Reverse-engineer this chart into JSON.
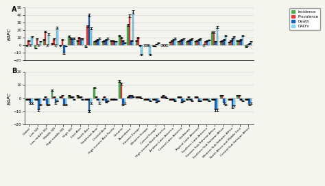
{
  "categories": [
    "Global",
    "Low SDI",
    "Low-middle SDI",
    "Middle SDI",
    "High-middle SDI",
    "High SDI",
    "East Asia",
    "South Asia",
    "Southeast Asia",
    "Central Asia",
    "High-income Asia Pacific",
    "Oceania",
    "Australasia",
    "Eastern Europe",
    "Western Europe",
    "Central Europe",
    "High-income North America",
    "Andean Latin America",
    "Central Latin America",
    "Caribbean",
    "Tropical Latin America",
    "Southern Latin America",
    "Eastern Sub-Saharan Africa",
    "Southern Sub-Saharan Africa",
    "Western Sub-Saharan Africa",
    "North Africa and Middle East",
    "Central Sub-Saharan Africa"
  ],
  "panel_A": {
    "incidence": [
      -1,
      -4,
      7,
      2,
      -1,
      12,
      6,
      -2,
      5,
      5,
      6,
      13,
      27,
      6,
      0,
      -1,
      0,
      4,
      5,
      5,
      5,
      0,
      17,
      5,
      4,
      6,
      -2
    ],
    "prevalence": [
      6,
      8,
      18,
      8,
      7,
      9,
      10,
      25,
      6,
      6,
      6,
      10,
      39,
      10,
      0,
      -1,
      0,
      6,
      6,
      6,
      6,
      5,
      17,
      6,
      6,
      6,
      0
    ],
    "death": [
      0,
      0,
      0,
      0,
      -11,
      9,
      8,
      40,
      7,
      7,
      5,
      6,
      6,
      -1,
      0,
      1,
      0,
      7,
      7,
      7,
      7,
      6,
      5,
      7,
      8,
      7,
      2
    ],
    "dalys": [
      11,
      5,
      15,
      23,
      -1,
      9,
      8,
      22,
      9,
      9,
      5,
      3,
      44,
      -13,
      -13,
      3,
      0,
      9,
      8,
      8,
      8,
      7,
      24,
      13,
      11,
      13,
      5
    ]
  },
  "panel_B": {
    "incidence": [
      -1,
      -1,
      -1,
      6,
      1,
      2,
      2,
      -1,
      8,
      -1,
      -1,
      13,
      1,
      1,
      -1,
      -1,
      1,
      -1,
      1,
      -1,
      1,
      -1,
      -1,
      2,
      -1,
      2,
      -1
    ],
    "prevalence": [
      -1,
      -1,
      1,
      1,
      2,
      1,
      1,
      -1,
      1,
      1,
      -1,
      11,
      2,
      1,
      -1,
      -1,
      2,
      -1,
      1,
      1,
      1,
      -1,
      -1,
      2,
      -1,
      2,
      -1
    ],
    "death": [
      -4,
      -9,
      -5,
      -4,
      -5,
      1,
      1,
      -10,
      -1,
      -3,
      -1,
      -5,
      2,
      1,
      -1,
      -3,
      1,
      -1,
      -3,
      -1,
      -2,
      -1,
      -9,
      -4,
      -7,
      -1,
      -5
    ],
    "dalys": [
      -4,
      -5,
      -5,
      -2,
      -5,
      -1,
      -1,
      -4,
      -4,
      -2,
      -1,
      -4,
      1,
      0,
      -2,
      -2,
      0,
      -2,
      -2,
      -2,
      -2,
      -2,
      -9,
      -5,
      -6,
      -2,
      -4
    ]
  },
  "colors": {
    "incidence": "#4caf50",
    "prevalence": "#e53935",
    "death": "#1565c0",
    "dalys": "#81d4fa"
  },
  "error_A": {
    "incidence": [
      0.8,
      0.8,
      1.0,
      0.8,
      0.8,
      1.0,
      0.8,
      1.0,
      0.8,
      0.8,
      0.8,
      1.0,
      1.5,
      0.8,
      0.5,
      0.5,
      0.5,
      0.8,
      0.8,
      0.8,
      0.8,
      0.5,
      1.0,
      0.8,
      0.8,
      0.8,
      0.5
    ],
    "prevalence": [
      0.5,
      0.8,
      1.0,
      0.8,
      0.8,
      0.8,
      0.8,
      1.5,
      0.8,
      0.8,
      0.8,
      0.8,
      2.0,
      0.8,
      0.5,
      0.5,
      0.5,
      0.8,
      0.8,
      0.8,
      0.8,
      0.5,
      1.0,
      0.8,
      0.8,
      0.8,
      0.5
    ],
    "death": [
      0.5,
      0.5,
      0.5,
      0.5,
      1.0,
      0.8,
      0.8,
      2.0,
      0.8,
      0.8,
      0.8,
      0.8,
      0.8,
      0.8,
      0.5,
      0.5,
      0.5,
      0.8,
      0.8,
      0.8,
      0.8,
      0.5,
      0.8,
      0.8,
      0.8,
      0.8,
      0.5
    ],
    "dalys": [
      0.8,
      0.5,
      1.0,
      1.5,
      0.5,
      0.8,
      0.8,
      1.5,
      0.8,
      0.8,
      0.8,
      0.5,
      2.5,
      1.0,
      1.0,
      0.5,
      0.5,
      0.8,
      0.8,
      0.8,
      0.8,
      0.5,
      1.5,
      1.0,
      1.0,
      1.0,
      0.5
    ]
  },
  "error_B": {
    "incidence": [
      0.3,
      0.3,
      0.3,
      0.5,
      0.3,
      0.3,
      0.3,
      0.3,
      0.5,
      0.3,
      0.3,
      0.8,
      0.3,
      0.3,
      0.3,
      0.3,
      0.3,
      0.3,
      0.3,
      0.3,
      0.3,
      0.3,
      0.3,
      0.3,
      0.3,
      0.3,
      0.3
    ],
    "prevalence": [
      0.3,
      0.3,
      0.3,
      0.3,
      0.3,
      0.3,
      0.3,
      0.3,
      0.3,
      0.3,
      0.3,
      0.8,
      0.3,
      0.3,
      0.3,
      0.3,
      0.3,
      0.3,
      0.3,
      0.3,
      0.3,
      0.3,
      0.3,
      0.3,
      0.3,
      0.3,
      0.3
    ],
    "death": [
      0.5,
      0.8,
      0.5,
      0.5,
      0.5,
      0.3,
      0.3,
      0.8,
      0.3,
      0.3,
      0.3,
      0.5,
      0.3,
      0.3,
      0.3,
      0.3,
      0.3,
      0.3,
      0.3,
      0.3,
      0.3,
      0.3,
      0.8,
      0.5,
      0.5,
      0.3,
      0.5
    ],
    "dalys": [
      0.5,
      0.5,
      0.5,
      0.3,
      0.5,
      0.3,
      0.3,
      0.5,
      0.5,
      0.3,
      0.3,
      0.5,
      0.3,
      0.3,
      0.3,
      0.3,
      0.3,
      0.3,
      0.3,
      0.3,
      0.3,
      0.3,
      0.8,
      0.5,
      0.5,
      0.3,
      0.5
    ]
  },
  "ylim_A": [
    -20,
    50
  ],
  "ylim_B": [
    -20,
    20
  ],
  "yticks_A": [
    -20,
    -10,
    0,
    10,
    20,
    30,
    40,
    50
  ],
  "yticks_B": [
    -20,
    -10,
    0,
    10,
    20
  ],
  "ylabel": "EAPC",
  "bg_color": "#f5f5f0"
}
